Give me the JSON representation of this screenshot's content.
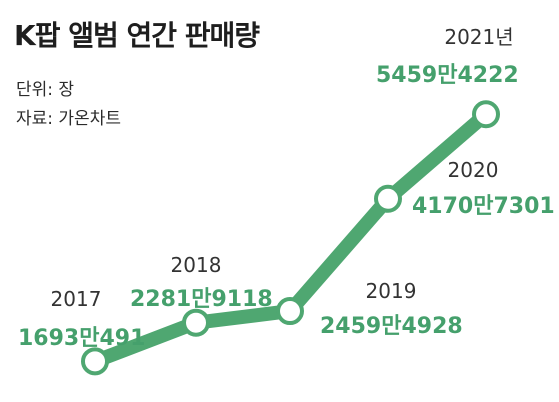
{
  "header": {
    "title": "K팝 앨범 연간 판매량",
    "unit": "단위: 장",
    "source": "자료: 가온차트"
  },
  "colors": {
    "line": "#4fa771",
    "value": "#45a06c",
    "year": "#333333"
  },
  "chart_data": {
    "type": "line",
    "title": "K팝 앨범 연간 판매량",
    "ylabel": "단위: 장",
    "x": [
      "2017",
      "2018",
      "2019",
      "2020",
      "2021"
    ],
    "x_labels": [
      "2017",
      "2018",
      "2019",
      "2020",
      "2021년"
    ],
    "values": [
      16930491,
      22819118,
      24594928,
      41707301,
      54594222
    ],
    "value_labels": [
      "1693만491",
      "2281만9118",
      "2459만4928",
      "4170만7301",
      "5459만4222"
    ],
    "ylim": [
      15000000,
      56000000
    ],
    "grid": false,
    "legend": "none"
  }
}
